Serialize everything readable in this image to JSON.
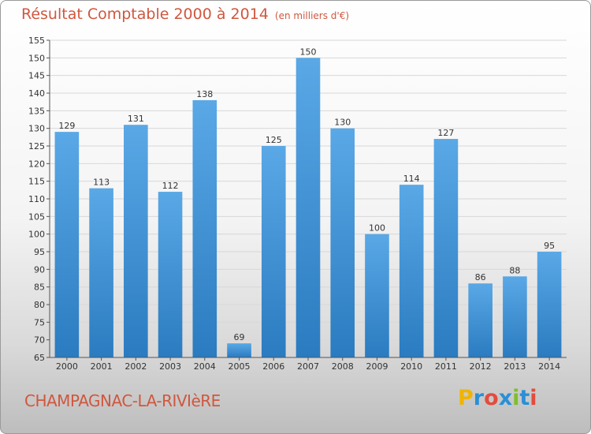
{
  "header": {
    "title": "Résultat Comptable 2000 à 2014",
    "subtitle": "(en milliers d'€)"
  },
  "footer": {
    "commune": "CHAMPAGNAC-LA-RIVIèRE",
    "logo": "Proxiti",
    "logo_colors": [
      "#f0b400",
      "#2a8fd6",
      "#e34b3f",
      "#2a8fd6",
      "#7fbf2a",
      "#2a8fd6",
      "#e34b3f"
    ]
  },
  "colors": {
    "bar_top": "#5aa8e6",
    "bar_bottom": "#2a7bc0",
    "accent": "#d0573e"
  },
  "chart_data": {
    "type": "bar",
    "title": "Résultat Comptable 2000 à 2014",
    "subtitle": "(en milliers d'€)",
    "categories": [
      "2000",
      "2001",
      "2002",
      "2003",
      "2004",
      "2005",
      "2006",
      "2007",
      "2008",
      "2009",
      "2010",
      "2011",
      "2012",
      "2013",
      "2014"
    ],
    "values": [
      129,
      113,
      131,
      112,
      138,
      69,
      125,
      150,
      130,
      100,
      114,
      127,
      86,
      88,
      95
    ],
    "ylim": [
      65,
      155
    ],
    "yticks": [
      65,
      70,
      75,
      80,
      85,
      90,
      95,
      100,
      105,
      110,
      115,
      120,
      125,
      130,
      135,
      140,
      145,
      150,
      155
    ],
    "xlabel": "",
    "ylabel": "",
    "grid": true,
    "legend": "none"
  }
}
